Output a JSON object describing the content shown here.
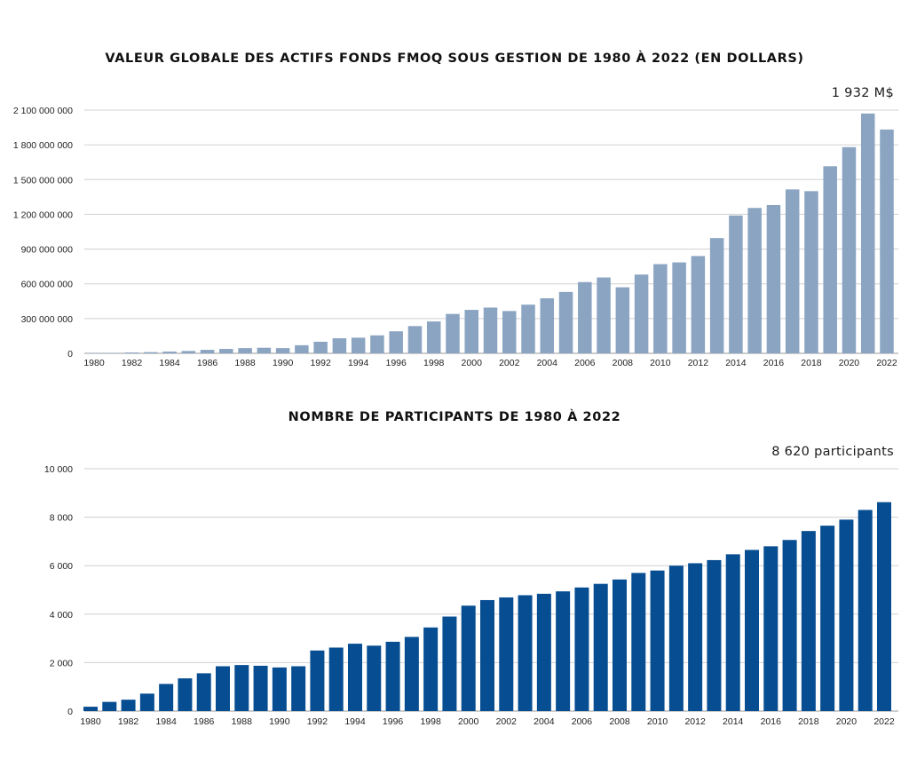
{
  "chart_data": [
    {
      "type": "bar",
      "title": "VALEUR GLOBALE DES ACTIFS FONDS FMOQ SOUS GESTION DE 1980 À 2022 (EN DOLLARS)",
      "annotation": "1 932 M$",
      "xlabel": "",
      "ylabel": "",
      "ylim": [
        0,
        2100000000
      ],
      "grid": true,
      "color": "#8aa4c2",
      "y_ticks": [
        0,
        300000000,
        600000000,
        900000000,
        1200000000,
        1500000000,
        1800000000,
        2100000000
      ],
      "y_tick_labels": [
        "0",
        "300 000 000",
        "600 000 000",
        "900 000 000",
        "1 200 000 000",
        "1 500 000 000",
        "1 800 000 000",
        "2 100 000 000"
      ],
      "x_tick_labels": [
        "1980",
        "1982",
        "1984",
        "1986",
        "1988",
        "1990",
        "1992",
        "1994",
        "1996",
        "1998",
        "2000",
        "2002",
        "2004",
        "2006",
        "2008",
        "2010",
        "2012",
        "2014",
        "2016",
        "2018",
        "2020",
        "2022"
      ],
      "categories": [
        "1980",
        "1981",
        "1982",
        "1983",
        "1984",
        "1985",
        "1986",
        "1987",
        "1988",
        "1989",
        "1990",
        "1991",
        "1992",
        "1993",
        "1994",
        "1995",
        "1996",
        "1997",
        "1998",
        "1999",
        "2000",
        "2001",
        "2002",
        "2003",
        "2004",
        "2005",
        "2006",
        "2007",
        "2008",
        "2009",
        "2010",
        "2011",
        "2012",
        "2013",
        "2014",
        "2015",
        "2016",
        "2017",
        "2018",
        "2019",
        "2020",
        "2021",
        "2022"
      ],
      "values": [
        2000000,
        4000000,
        7000000,
        10000000,
        15000000,
        20000000,
        30000000,
        38000000,
        45000000,
        48000000,
        45000000,
        70000000,
        100000000,
        130000000,
        135000000,
        155000000,
        190000000,
        235000000,
        275000000,
        340000000,
        375000000,
        395000000,
        365000000,
        420000000,
        475000000,
        530000000,
        615000000,
        655000000,
        570000000,
        680000000,
        770000000,
        785000000,
        840000000,
        995000000,
        1190000000,
        1255000000,
        1280000000,
        1415000000,
        1400000000,
        1615000000,
        1780000000,
        2070000000,
        1932000000
      ]
    },
    {
      "type": "bar",
      "title": "NOMBRE DE PARTICIPANTS DE 1980 À 2022",
      "annotation": "8 620 participants",
      "xlabel": "",
      "ylabel": "",
      "ylim": [
        0,
        10000
      ],
      "grid": true,
      "color": "#064d92",
      "y_ticks": [
        0,
        2000,
        4000,
        6000,
        8000,
        10000
      ],
      "y_tick_labels": [
        "0",
        "2 000",
        "4 000",
        "6 000",
        "8 000",
        "10 000"
      ],
      "x_tick_labels": [
        "1980",
        "1982",
        "1984",
        "1986",
        "1988",
        "1990",
        "1992",
        "1994",
        "1996",
        "1998",
        "2000",
        "2002",
        "2004",
        "2006",
        "2008",
        "2010",
        "2012",
        "2014",
        "2016",
        "2018",
        "2020",
        "2022"
      ],
      "categories": [
        "1980",
        "1981",
        "1982",
        "1983",
        "1984",
        "1985",
        "1986",
        "1987",
        "1988",
        "1989",
        "1990",
        "1991",
        "1992",
        "1993",
        "1994",
        "1995",
        "1996",
        "1997",
        "1998",
        "1999",
        "2000",
        "2001",
        "2002",
        "2003",
        "2004",
        "2005",
        "2006",
        "2007",
        "2008",
        "2009",
        "2010",
        "2011",
        "2012",
        "2013",
        "2014",
        "2015",
        "2016",
        "2017",
        "2018",
        "2019",
        "2020",
        "2021",
        "2022"
      ],
      "values": [
        180,
        380,
        470,
        720,
        1120,
        1350,
        1560,
        1850,
        1900,
        1870,
        1800,
        1850,
        2500,
        2620,
        2780,
        2700,
        2860,
        3060,
        3450,
        3900,
        4350,
        4580,
        4690,
        4780,
        4840,
        4940,
        5100,
        5250,
        5430,
        5700,
        5800,
        6000,
        6100,
        6230,
        6470,
        6650,
        6800,
        7060,
        7430,
        7650,
        7900,
        8300,
        8620
      ]
    }
  ]
}
